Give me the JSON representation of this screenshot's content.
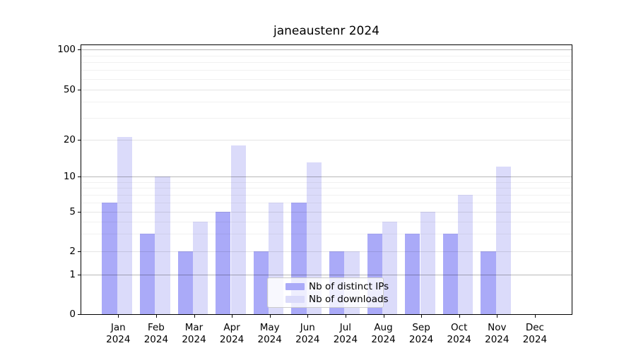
{
  "chart_data": {
    "type": "bar",
    "title": "janeaustenr 2024",
    "categories": [
      "Jan",
      "Feb",
      "Mar",
      "Apr",
      "May",
      "Jun",
      "Jul",
      "Aug",
      "Sep",
      "Oct",
      "Nov",
      "Dec"
    ],
    "year_label": "2024",
    "x_tick_labels": [
      "Jan 2024",
      "Feb 2024",
      "Mar 2024",
      "Apr 2024",
      "May 2024",
      "Jun 2024",
      "Jul 2024",
      "Aug 2024",
      "Sep 2024",
      "Oct 2024",
      "Nov 2024",
      "Dec 2024"
    ],
    "series": [
      {
        "name": "Nb of distinct IPs",
        "color": "#aaaaf8",
        "values": [
          6,
          3,
          2,
          5,
          2,
          6,
          2,
          3,
          3,
          3,
          2,
          0
        ]
      },
      {
        "name": "Nb of downloads",
        "color": "#dbdbfa",
        "values": [
          21,
          10,
          4,
          18,
          6,
          13,
          2,
          4,
          5,
          7,
          12,
          0
        ]
      }
    ],
    "y_axis": {
      "ticks": [
        0,
        1,
        2,
        5,
        10,
        20,
        50,
        100
      ],
      "minor_ticks": [
        3,
        4,
        6,
        7,
        8,
        9,
        30,
        40,
        60,
        70,
        80,
        90
      ],
      "scale": "log-like",
      "range": [
        0,
        110
      ]
    },
    "legend": {
      "position": "lower center",
      "entries": [
        "Nb of distinct IPs",
        "Nb of downloads"
      ]
    },
    "grid": "both"
  }
}
